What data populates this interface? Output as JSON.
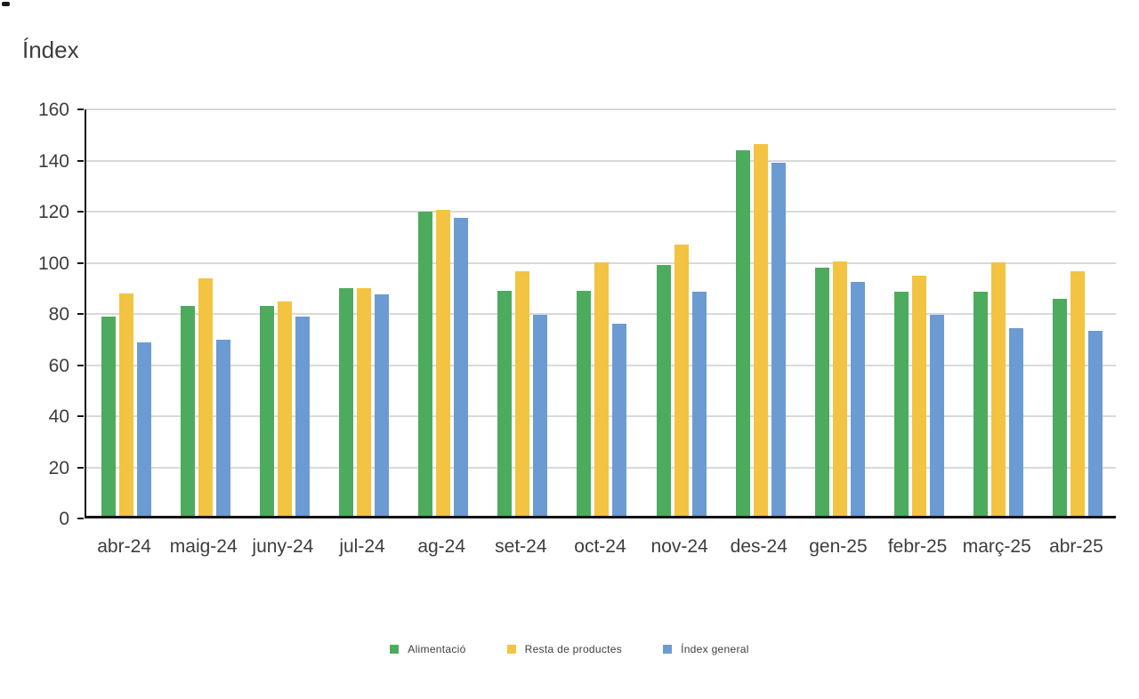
{
  "title": "Índex",
  "chart_data": {
    "type": "bar",
    "title": "Índex",
    "categories": [
      "abr-24",
      "maig-24",
      "juny-24",
      "jul-24",
      "ag-24",
      "set-24",
      "oct-24",
      "nov-24",
      "des-24",
      "gen-25",
      "febr-25",
      "març-25",
      "abr-25"
    ],
    "series": [
      {
        "name": "Alimentació",
        "color": "#4DAB5E",
        "values": [
          78,
          82,
          82,
          89,
          119,
          88,
          88,
          98,
          143,
          97,
          87.5,
          87.5,
          85
        ]
      },
      {
        "name": "Resta de productes",
        "color": "#F3C342",
        "values": [
          87,
          93,
          84,
          89,
          119.5,
          95.5,
          99,
          106,
          145.5,
          99.5,
          94,
          99,
          95.5
        ]
      },
      {
        "name": "Índex general",
        "color": "#6C9BD3",
        "values": [
          68,
          69,
          78,
          86.5,
          116.5,
          78.5,
          75,
          87.5,
          138,
          91.5,
          78.5,
          73.5,
          72.5
        ]
      }
    ],
    "xlabel": "",
    "ylabel": "Índex",
    "ylim": [
      0,
      160
    ],
    "yticks": [
      0,
      20,
      40,
      60,
      80,
      100,
      120,
      140,
      160
    ],
    "grid": "horizontal",
    "gridline_color": "#d9d9d9",
    "axis_color": "#141414",
    "text_color": "#3d3d3d",
    "legend_position": "bottom"
  }
}
